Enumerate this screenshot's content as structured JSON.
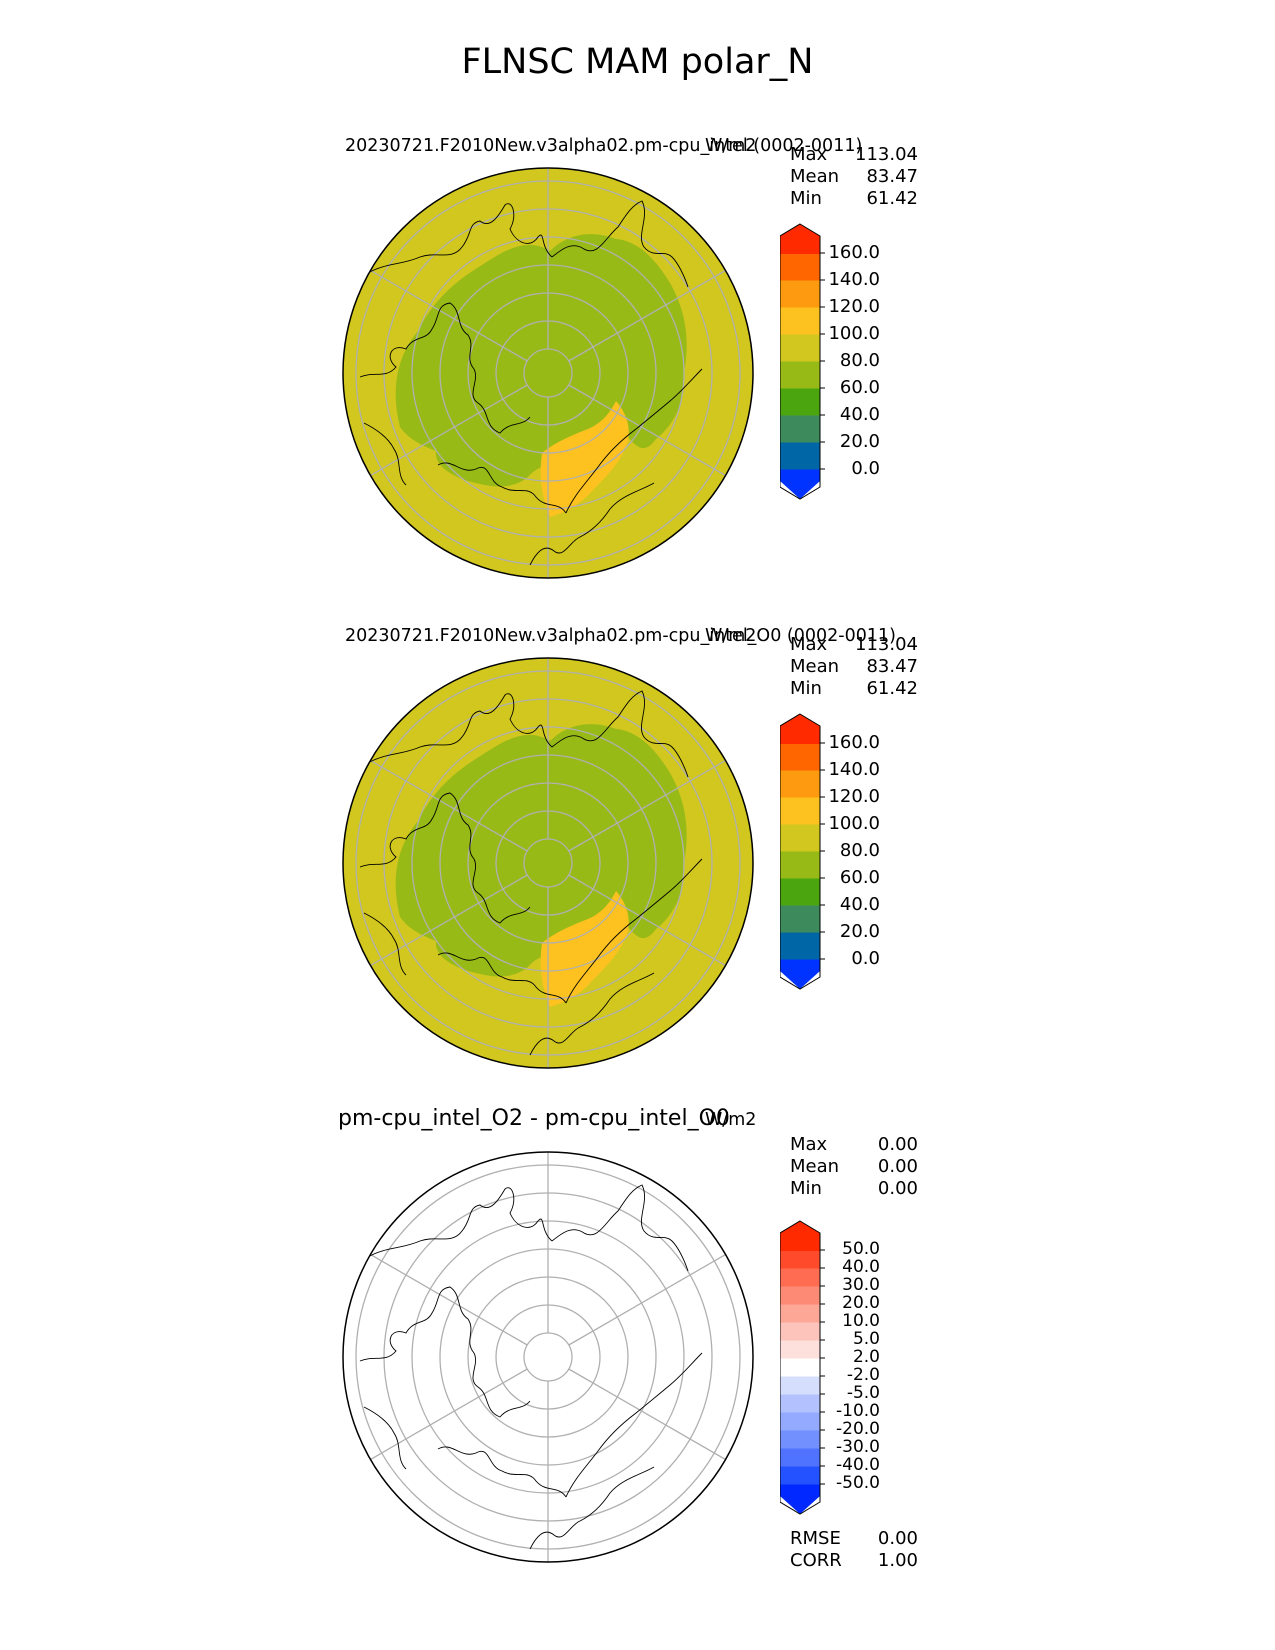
{
  "figure": {
    "title": "FLNSC MAM polar_N"
  },
  "panels": [
    {
      "title": "20230721.F2010New.v3alpha02.pm-cpu_intel (0002-0011)",
      "units": "W/m2",
      "stats": [
        {
          "label": "Max",
          "value": "113.04"
        },
        {
          "label": "Mean",
          "value": "83.47"
        },
        {
          "label": "Min",
          "value": "61.42"
        }
      ],
      "colorbar": {
        "colors": [
          "#0033ff",
          "#0066a6",
          "#3d8a5d",
          "#4aa50f",
          "#98ba17",
          "#d1c71e",
          "#fdc21f",
          "#fd9a0f",
          "#ff6600",
          "#ff2a00"
        ],
        "labels": [
          "0.0",
          "20.0",
          "40.0",
          "60.0",
          "80.0",
          "100.0",
          "120.0",
          "140.0",
          "160.0"
        ]
      },
      "map_style": "filled"
    },
    {
      "title": "20230721.F2010New.v3alpha02.pm-cpu_intel_O0 (0002-0011)",
      "units": "W/m2",
      "stats": [
        {
          "label": "Max",
          "value": "113.04"
        },
        {
          "label": "Mean",
          "value": "83.47"
        },
        {
          "label": "Min",
          "value": "61.42"
        }
      ],
      "colorbar": {
        "colors": [
          "#0033ff",
          "#0066a6",
          "#3d8a5d",
          "#4aa50f",
          "#98ba17",
          "#d1c71e",
          "#fdc21f",
          "#fd9a0f",
          "#ff6600",
          "#ff2a00"
        ],
        "labels": [
          "0.0",
          "20.0",
          "40.0",
          "60.0",
          "80.0",
          "100.0",
          "120.0",
          "140.0",
          "160.0"
        ]
      },
      "map_style": "filled"
    },
    {
      "title": "pm-cpu_intel_O2 - pm-cpu_intel_O0",
      "units": "W/m2",
      "stats": [
        {
          "label": "Max",
          "value": "0.00"
        },
        {
          "label": "Mean",
          "value": "0.00"
        },
        {
          "label": "Min",
          "value": "0.00"
        }
      ],
      "colorbar": {
        "colors": [
          "#0028ff",
          "#2452ff",
          "#4f73ff",
          "#7390ff",
          "#93aaff",
          "#b3c2ff",
          "#d6defd",
          "#ffffff",
          "#fde0db",
          "#fdc4bb",
          "#fda797",
          "#fd8a74",
          "#ff6c52",
          "#ff4b2c",
          "#ff2a00"
        ],
        "labels": [
          "-50.0",
          "-40.0",
          "-30.0",
          "-20.0",
          "-10.0",
          "-5.0",
          "-2.0",
          "2.0",
          "5.0",
          "10.0",
          "20.0",
          "30.0",
          "40.0",
          "50.0"
        ]
      },
      "map_style": "blank"
    }
  ],
  "diff_metrics": [
    {
      "label": "RMSE",
      "value": "0.00"
    },
    {
      "label": "CORR",
      "value": "1.00"
    }
  ]
}
